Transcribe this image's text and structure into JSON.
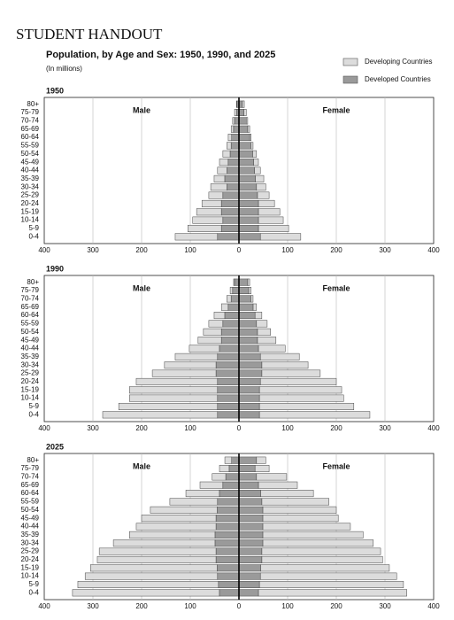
{
  "header": "STUDENT HANDOUT",
  "title": "Population, by Age and Sex:  1950, 1990, and 2025",
  "subtitle": "(In millions)",
  "legend": [
    {
      "name": "Developing Countries",
      "color": "#dcdcdc"
    },
    {
      "name": "Developed Countries",
      "color": "#9a9a9a"
    }
  ],
  "chart_data": [
    {
      "type": "pyramid",
      "title": "1950",
      "male_label": "Male",
      "female_label": "Female",
      "categories": [
        "0-4",
        "5-9",
        "10-14",
        "15-19",
        "20-24",
        "25-29",
        "30-34",
        "35-39",
        "40-44",
        "45-49",
        "50-54",
        "55-59",
        "60-64",
        "65-69",
        "70-74",
        "75-79",
        "80+"
      ],
      "xlim": [
        -400,
        400
      ],
      "xticks": [
        {
          "value": -400,
          "label": "400"
        },
        {
          "value": -300,
          "label": "300"
        },
        {
          "value": -200,
          "label": "200"
        },
        {
          "value": -100,
          "label": "100"
        },
        0,
        100,
        200,
        300,
        400
      ],
      "male": {
        "developed": [
          44,
          36,
          33,
          36,
          36,
          33,
          25,
          29,
          25,
          22,
          18,
          16,
          15,
          11,
          9,
          5,
          4
        ],
        "developing": [
          87,
          69,
          62,
          51,
          40,
          29,
          33,
          22,
          19,
          18,
          15,
          9,
          7,
          5,
          4,
          4,
          1
        ]
      },
      "female": {
        "developed": [
          44,
          40,
          40,
          40,
          40,
          38,
          36,
          34,
          32,
          30,
          28,
          25,
          22,
          18,
          15,
          10,
          7
        ],
        "developing": [
          83,
          62,
          51,
          44,
          33,
          24,
          19,
          17,
          12,
          10,
          8,
          4,
          3,
          4,
          3,
          5,
          4
        ]
      }
    },
    {
      "type": "pyramid",
      "title": "1990",
      "male_label": "Male",
      "female_label": "Female",
      "categories": [
        "0-4",
        "5-9",
        "10-14",
        "15-19",
        "20-24",
        "25-29",
        "30-34",
        "35-39",
        "40-44",
        "45-49",
        "50-54",
        "55-59",
        "60-64",
        "65-69",
        "70-74",
        "75-79",
        "80+"
      ],
      "xlim": [
        -400,
        400
      ],
      "xticks": [
        {
          "value": -400,
          "label": "400"
        },
        {
          "value": -300,
          "label": "300"
        },
        {
          "value": -200,
          "label": "200"
        },
        {
          "value": -100,
          "label": "100"
        },
        0,
        100,
        200,
        300,
        400
      ],
      "male": {
        "developed": [
          44,
          44,
          44,
          44,
          44,
          47,
          47,
          44,
          40,
          36,
          36,
          33,
          29,
          22,
          16,
          13,
          9
        ],
        "developing": [
          236,
          203,
          181,
          181,
          167,
          131,
          106,
          87,
          62,
          48,
          37,
          29,
          22,
          14,
          9,
          5,
          2
        ]
      },
      "female": {
        "developed": [
          42,
          42,
          42,
          42,
          44,
          47,
          47,
          44,
          40,
          38,
          38,
          36,
          33,
          29,
          25,
          20,
          18
        ],
        "developing": [
          227,
          194,
          173,
          169,
          156,
          120,
          95,
          80,
          55,
          38,
          27,
          22,
          14,
          7,
          4,
          5,
          4
        ]
      }
    },
    {
      "type": "pyramid",
      "title": "2025",
      "male_label": "Male",
      "female_label": "Female",
      "categories": [
        "0-4",
        "5-9",
        "10-14",
        "15-19",
        "20-24",
        "25-29",
        "30-34",
        "35-39",
        "40-44",
        "45-49",
        "50-54",
        "55-59",
        "60-64",
        "65-69",
        "70-74",
        "75-79",
        "80+"
      ],
      "xlim": [
        -400,
        400
      ],
      "xticks": [
        {
          "value": -400,
          "label": "400"
        },
        {
          "value": -300,
          "label": "300"
        },
        {
          "value": -200,
          "label": "200"
        },
        {
          "value": -100,
          "label": "100"
        },
        0,
        100,
        200,
        300,
        400
      ],
      "male": {
        "developed": [
          40,
          42,
          44,
          45,
          47,
          47,
          49,
          49,
          47,
          47,
          45,
          44,
          40,
          33,
          27,
          20,
          15
        ],
        "developing": [
          302,
          289,
          272,
          260,
          244,
          240,
          209,
          176,
          164,
          153,
          137,
          98,
          69,
          47,
          28,
          20,
          14
        ]
      },
      "female": {
        "developed": [
          40,
          42,
          44,
          45,
          47,
          47,
          49,
          49,
          49,
          49,
          49,
          47,
          45,
          40,
          36,
          33,
          36
        ],
        "developing": [
          305,
          296,
          280,
          264,
          248,
          244,
          227,
          206,
          180,
          155,
          151,
          138,
          108,
          80,
          62,
          29,
          19
        ]
      }
    }
  ]
}
